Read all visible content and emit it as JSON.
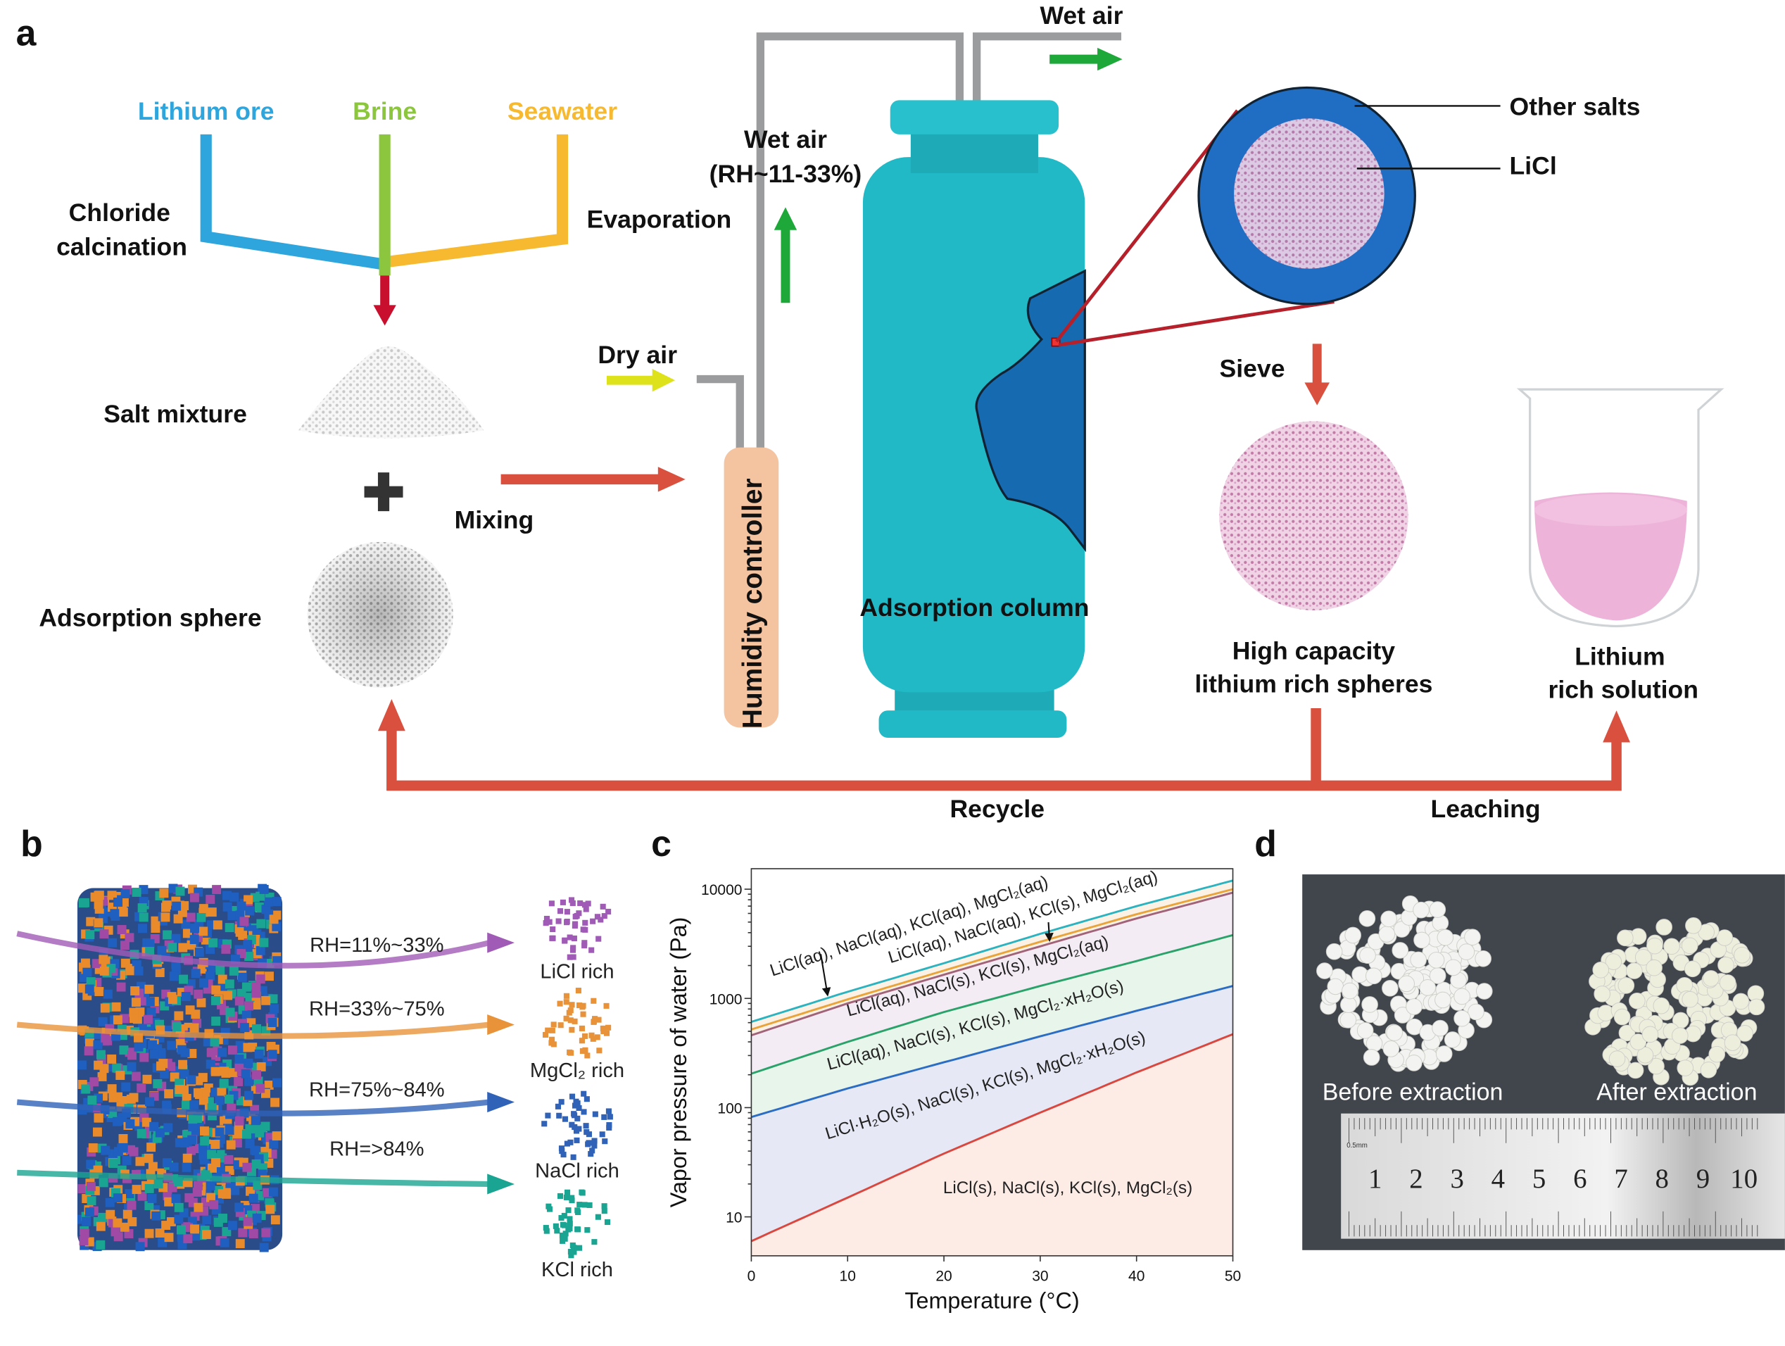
{
  "panel_a": {
    "panel_label": "a",
    "sources": [
      {
        "label": "Lithium ore",
        "color": "#2ea6dd"
      },
      {
        "label": "Brine",
        "color": "#8cc63e"
      },
      {
        "label": "Seawater",
        "color": "#f6b92f"
      }
    ],
    "chloride_calcination": [
      "Chloride",
      "calcination"
    ],
    "evaporation": "Evaporation",
    "salt_mixture": "Salt mixture",
    "mixing": "Mixing",
    "adsorption_sphere": "Adsorption sphere",
    "dry_air": "Dry air",
    "wet_air_rh": [
      "Wet air",
      "(RH~11-33%)"
    ],
    "wet_air_out": "Wet air",
    "humidity_controller": "Humidity controller",
    "adsorption_column": "Adsorption column",
    "other_salts": "Other salts",
    "licl": "LiCl",
    "sieve": "Sieve",
    "high_capacity": [
      "High capacity",
      "lithium rich spheres"
    ],
    "lithium_solution": [
      "Lithium",
      "rich solution"
    ],
    "recycle": "Recycle",
    "leaching": "Leaching",
    "colors": {
      "arrow_red": "#d9503f",
      "column_teal": "#22b9c6",
      "air_green": "#1fa83a",
      "dry_air_yellow": "#dde21a",
      "pipe_gray": "#9a9c9e",
      "controller": "#f4c39f"
    }
  },
  "panel_b": {
    "panel_label": "b",
    "flows": [
      {
        "rh": "RH=11%~33%",
        "product": "LiCl rich",
        "color": "#a05bb6"
      },
      {
        "rh": "RH=33%~75%",
        "product": "MgCl₂ rich",
        "color": "#e8923a"
      },
      {
        "rh": "RH=75%~84%",
        "product": "NaCl rich",
        "color": "#3062b8"
      },
      {
        "rh": "RH=>84%",
        "product": "KCl rich",
        "color": "#1aa592"
      }
    ]
  },
  "panel_c": {
    "panel_label": "c"
  },
  "chart_data": {
    "type": "line",
    "xlabel": "Temperature (°C)",
    "ylabel": "Vapor pressure of water (Pa)",
    "xlim": [
      0,
      50
    ],
    "ylim": [
      4.4,
      15400
    ],
    "yscale": "log",
    "x_ticks": [
      "0",
      "10",
      "20",
      "30",
      "40",
      "50"
    ],
    "y_ticks": [
      "10",
      "100",
      "1000",
      "10000"
    ],
    "x": [
      0,
      10,
      20,
      30,
      40,
      50
    ],
    "series": [
      {
        "color": "#2bb3c0",
        "values": [
          610,
          1150,
          2100,
          3900,
          7000,
          12000
        ]
      },
      {
        "color": "#e8a33a",
        "values": [
          520,
          980,
          1800,
          3300,
          5900,
          10000
        ]
      },
      {
        "color": "#a0637a",
        "values": [
          460,
          900,
          1650,
          3000,
          5400,
          9300
        ]
      },
      {
        "color": "#2aa36a",
        "values": [
          205,
          400,
          750,
          1300,
          2200,
          3800
        ]
      },
      {
        "color": "#2b6cc4",
        "values": [
          82,
          150,
          260,
          450,
          770,
          1300
        ]
      },
      {
        "color": "#d9473f",
        "values": [
          6,
          15,
          38,
          90,
          210,
          470
        ]
      }
    ],
    "region_fills": [
      "#fbf1e4",
      "#f4ecf4",
      "#e8f5ea",
      "#e6e9f5",
      "#fdebe5"
    ],
    "region_labels": [
      "LiCl(aq), NaCl(aq), KCl(aq), MgCl₂(aq)",
      "LiCl(aq), NaCl(aq), KCl(s), MgCl₂(aq)",
      "LiCl(aq), NaCl(s), KCl(s), MgCl₂(aq)",
      "LiCl(aq), NaCl(s), KCl(s), MgCl₂·xH₂O(s)",
      "LiCl·H₂O(s), NaCl(s), KCl(s), MgCl₂·xH₂O(s)",
      "LiCl(s), NaCl(s), KCl(s), MgCl₂(s)"
    ],
    "grid": false
  },
  "panel_d": {
    "panel_label": "d",
    "before": "Before extraction",
    "after": "After extraction",
    "ruler_numbers": [
      "1",
      "2",
      "3",
      "4",
      "5",
      "6",
      "7",
      "8",
      "9",
      "10"
    ],
    "ruler_unit": "0.5mm"
  }
}
